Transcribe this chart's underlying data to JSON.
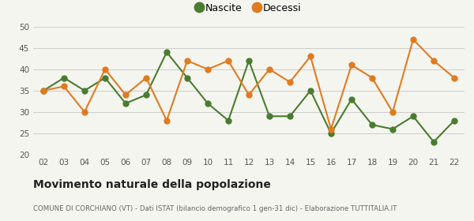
{
  "years": [
    "02",
    "03",
    "04",
    "05",
    "06",
    "07",
    "08",
    "09",
    "10",
    "11",
    "12",
    "13",
    "14",
    "15",
    "16",
    "17",
    "18",
    "19",
    "20",
    "21",
    "22"
  ],
  "nascite": [
    35,
    38,
    35,
    38,
    32,
    34,
    44,
    38,
    32,
    28,
    42,
    29,
    29,
    35,
    25,
    33,
    27,
    26,
    29,
    23,
    28
  ],
  "decessi": [
    35,
    36,
    30,
    40,
    34,
    38,
    28,
    42,
    40,
    42,
    34,
    40,
    37,
    43,
    26,
    41,
    38,
    30,
    47,
    42,
    38
  ],
  "nascite_color": "#4a7c2f",
  "decessi_color": "#e07b20",
  "bg_color": "#f5f5f0",
  "grid_color": "#cccccc",
  "ylim": [
    20,
    50
  ],
  "yticks": [
    20,
    25,
    30,
    35,
    40,
    45,
    50
  ],
  "title": "Movimento naturale della popolazione",
  "subtitle": "COMUNE DI CORCHIANO (VT) - Dati ISTAT (bilancio demografico 1 gen-31 dic) - Elaborazione TUTTITALIA.IT",
  "legend_nascite": "Nascite",
  "legend_decessi": "Decessi",
  "marker_size": 5,
  "line_width": 1.5
}
